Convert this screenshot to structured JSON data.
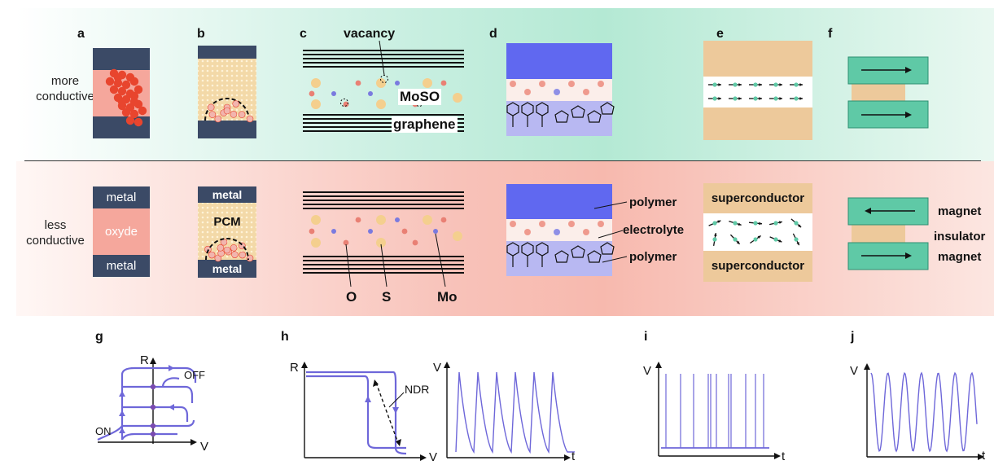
{
  "rows": {
    "top": [
      "more",
      "conductive"
    ],
    "bottom": [
      "less",
      "conductive"
    ]
  },
  "panel_letters": [
    "a",
    "b",
    "c",
    "d",
    "e",
    "f",
    "g",
    "h",
    "i",
    "j"
  ],
  "panel_a": {
    "top_label": "metal",
    "middle_label": "oxyde",
    "bottom_label": "metal"
  },
  "panel_b": {
    "top_label": "metal",
    "middle_label": "PCM",
    "bottom_label": "metal"
  },
  "panel_c": {
    "vacancy": "vacancy",
    "moso": "MoSO",
    "graphene": "graphene",
    "o": "O",
    "s": "S",
    "mo": "Mo"
  },
  "panel_d": {
    "polymer_top": "polymer",
    "electrolyte": "electrolyte",
    "polymer_bottom": "polymer"
  },
  "panel_e": {
    "top": "superconductor",
    "bottom": "superconductor"
  },
  "panel_f": {
    "magnet_top": "magnet",
    "insulator": "insulator",
    "magnet_bottom": "magnet"
  },
  "panel_g": {
    "y_axis": "R",
    "x_axis": "V",
    "off": "OFF",
    "on": "ON"
  },
  "panel_h": {
    "y_axis_left": "R",
    "x_axis_left": "V",
    "ndr": "NDR",
    "y_axis_right": "V",
    "x_axis_right": "t"
  },
  "panel_i": {
    "y_axis": "V",
    "x_axis": "t"
  },
  "panel_j": {
    "y_axis": "V",
    "x_axis": "t"
  },
  "colors": {
    "metal": "#3b4a66",
    "oxide": "#f5a79c",
    "pcm": "#f3d9a8",
    "dots_red": "#e8452e",
    "polymer_blue": "#6068f0",
    "polymer_light": "#b8b8f2",
    "superconductor": "#edc99b",
    "magnet": "#5fc9a6",
    "plot": "#6e67d9"
  }
}
